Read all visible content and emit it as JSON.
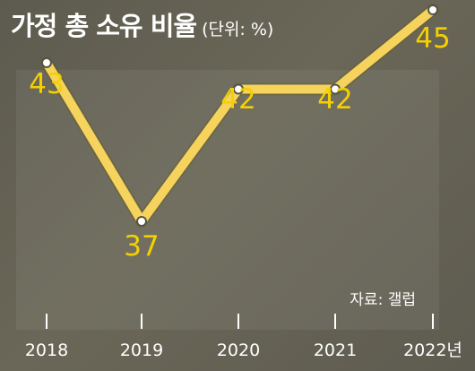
{
  "chart_data": {
    "type": "line",
    "title": "가정 총 소유 비율",
    "unit_label": "(단위: %)",
    "categories": [
      "2018",
      "2019",
      "2020",
      "2021",
      "2022년"
    ],
    "series": [
      {
        "values": [
          43,
          37,
          42,
          42,
          45
        ]
      }
    ],
    "data_labels": [
      "43",
      "37",
      "42",
      "42",
      "45"
    ],
    "source": "자료: 갤럽",
    "grid": false,
    "colors": {
      "line": "#f5d35c",
      "label": "#f5d000",
      "text": "#ffffff"
    }
  }
}
